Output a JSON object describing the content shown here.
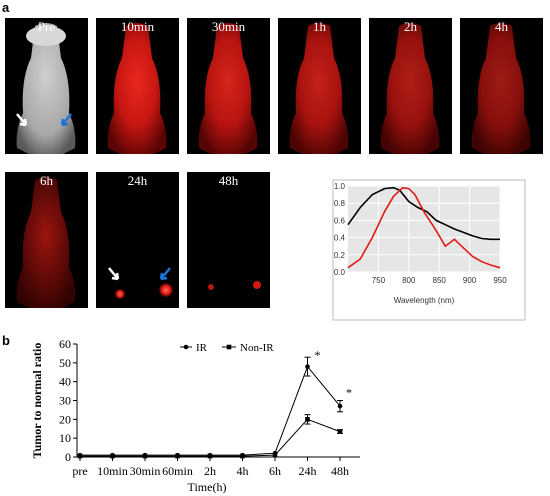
{
  "panels": {
    "a_label": "a",
    "b_label": "b"
  },
  "time_labels": [
    "Pre",
    "10min",
    "30min",
    "1h",
    "2h",
    "4h",
    "6h",
    "24h",
    "48h"
  ],
  "colors": {
    "fluorescence": "#e01b14",
    "ir_series": "#000000",
    "non_ir_series": "#000000"
  },
  "arrows": {
    "left": "white-arrow-icon",
    "right": "blue-arrow-icon"
  },
  "chart_data": [
    {
      "type": "line",
      "title": "",
      "xlabel": "Wavelength (nm)",
      "ylabel": "",
      "xlim": [
        700,
        950
      ],
      "ylim": [
        0,
        1.0
      ],
      "grid": true,
      "x_ticks": [
        "750",
        "800",
        "850",
        "900",
        "950"
      ],
      "y_ticks": [
        "0.0",
        "0.2",
        "0.4",
        "0.6",
        "0.8",
        "1.0"
      ],
      "series": [
        {
          "color": "#000000",
          "x": [
            700,
            720,
            740,
            760,
            775,
            785,
            800,
            815,
            830,
            845,
            860,
            875,
            890,
            905,
            920,
            935,
            950
          ],
          "y": [
            0.55,
            0.75,
            0.9,
            0.97,
            0.98,
            0.95,
            0.82,
            0.75,
            0.7,
            0.6,
            0.55,
            0.5,
            0.46,
            0.42,
            0.39,
            0.38,
            0.38
          ]
        },
        {
          "color": "#e01b14",
          "x": [
            700,
            720,
            740,
            760,
            775,
            790,
            800,
            810,
            825,
            845,
            860,
            875,
            890,
            905,
            920,
            935,
            950
          ],
          "y": [
            0.05,
            0.15,
            0.4,
            0.7,
            0.88,
            0.98,
            0.97,
            0.9,
            0.7,
            0.48,
            0.3,
            0.38,
            0.28,
            0.18,
            0.12,
            0.08,
            0.05
          ]
        }
      ]
    },
    {
      "type": "line",
      "title": "",
      "xlabel": "Time(h)",
      "ylabel": "Tumor to normal ratio",
      "ylim": [
        0,
        60
      ],
      "y_ticks": [
        "0",
        "10",
        "20",
        "30",
        "40",
        "50",
        "60"
      ],
      "categories": [
        "pre",
        "10min",
        "30min",
        "60min",
        "2h",
        "4h",
        "6h",
        "24h",
        "48h"
      ],
      "series": [
        {
          "name": "IR",
          "marker": "circle",
          "values": [
            1,
            1,
            1,
            1,
            1,
            1,
            2,
            48,
            27
          ],
          "errors": [
            0.3,
            0.3,
            0.3,
            0.3,
            0.3,
            0.3,
            0.4,
            5,
            3
          ]
        },
        {
          "name": "Non-IR",
          "marker": "square",
          "values": [
            0.5,
            0.5,
            0.5,
            0.5,
            0.5,
            0.5,
            1,
            20,
            13.5
          ],
          "errors": [
            0.2,
            0.2,
            0.2,
            0.2,
            0.2,
            0.2,
            0.3,
            2.5,
            1
          ]
        }
      ],
      "annotations": [
        "*",
        "*"
      ]
    }
  ]
}
